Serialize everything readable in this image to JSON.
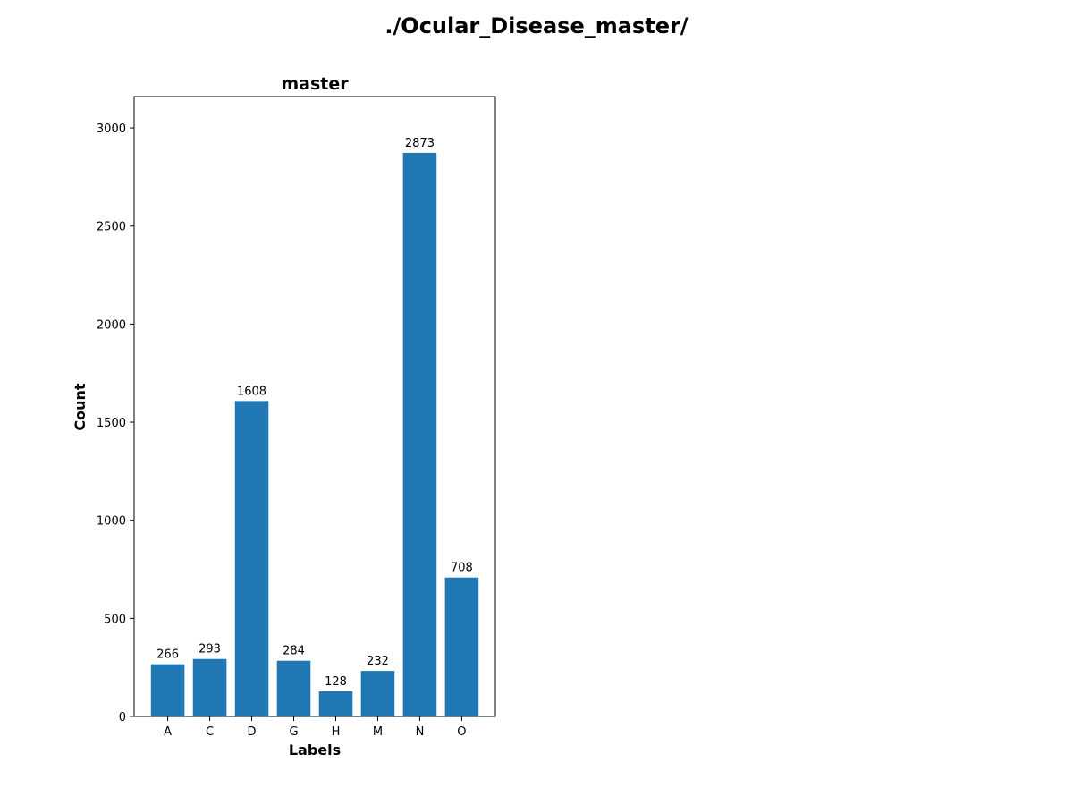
{
  "figure": {
    "suptitle": "./Ocular_Disease_master/"
  },
  "chart_data": {
    "type": "bar",
    "title": "master",
    "xlabel": "Labels",
    "ylabel": "Count",
    "categories": [
      "A",
      "C",
      "D",
      "G",
      "H",
      "M",
      "N",
      "O"
    ],
    "values": [
      266,
      293,
      1608,
      284,
      128,
      232,
      2873,
      708
    ],
    "data_labels": [
      "266",
      "293",
      "1608",
      "284",
      "128",
      "232",
      "2873",
      "708"
    ],
    "ylim": [
      0,
      3160
    ],
    "yticks": [
      0,
      500,
      1000,
      1500,
      2000,
      2500,
      3000
    ],
    "ytick_labels": [
      "0",
      "500",
      "1000",
      "1500",
      "2000",
      "2500",
      "3000"
    ],
    "grid": false,
    "legend": "none",
    "bar_color": "#1f77b4"
  }
}
